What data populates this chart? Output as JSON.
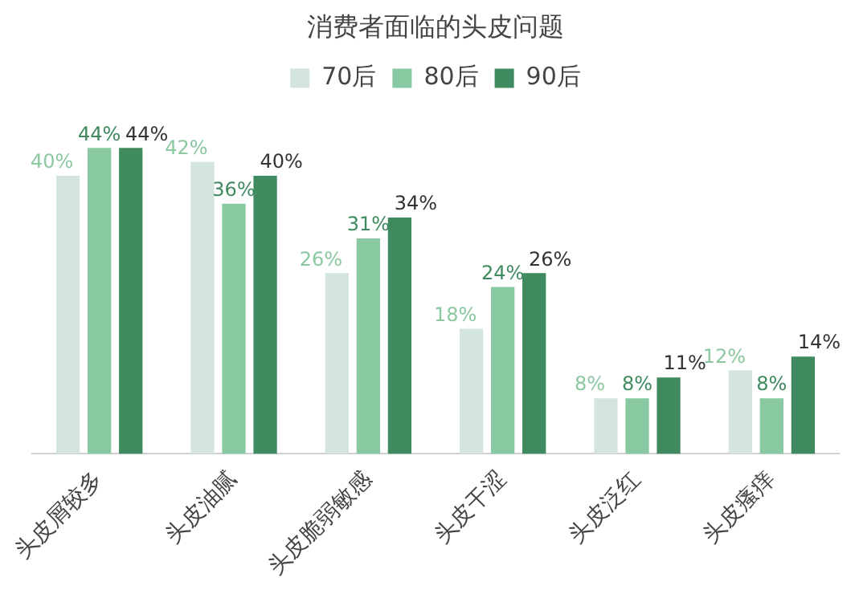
{
  "chart_data": {
    "type": "bar",
    "title": "消费者面临的头皮问题",
    "categories": [
      "头皮屑较多",
      "头皮油腻",
      "头皮脆弱敏感",
      "头皮干涩",
      "头皮泛红",
      "头皮瘙痒"
    ],
    "series": [
      {
        "name": "70后",
        "color": "#d3e5dc",
        "values": [
          40,
          42,
          26,
          18,
          8,
          12
        ],
        "value_labels": [
          "40%",
          "42%",
          "26%",
          "18%",
          "8%",
          "12%"
        ]
      },
      {
        "name": "80后",
        "color": "#88c9a1",
        "values": [
          44,
          36,
          31,
          24,
          8,
          8
        ],
        "value_labels": [
          "44%",
          "36%",
          "31%",
          "24%",
          "8%",
          "8%"
        ]
      },
      {
        "name": "90后",
        "color": "#3f8a5e",
        "values": [
          44,
          40,
          34,
          26,
          11,
          14
        ],
        "value_labels": [
          "44%",
          "40%",
          "34%",
          "26%",
          "11%",
          "14%"
        ]
      }
    ],
    "tick_labels": "x",
    "legend": "top",
    "grid": false
  }
}
